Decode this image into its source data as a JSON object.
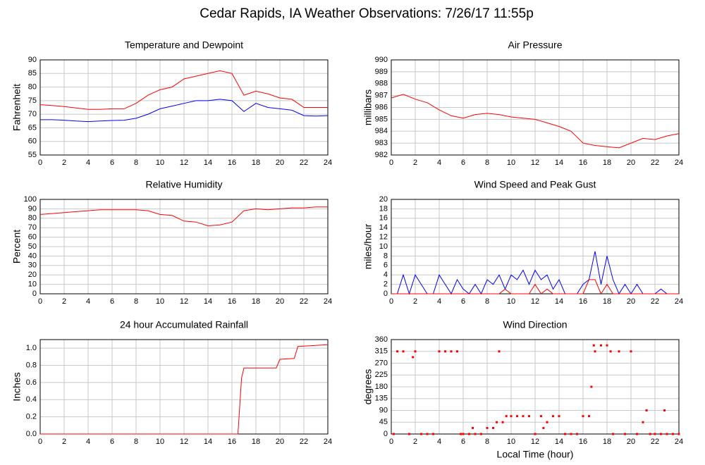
{
  "title": "Cedar Rapids, IA Weather Observations: 7/26/17 11:55p",
  "chart_data": [
    {
      "type": "line",
      "title": "Temperature and Dewpoint",
      "ylabel": "Fahrenheit",
      "x": [
        0,
        1,
        2,
        3,
        4,
        5,
        6,
        7,
        8,
        9,
        10,
        11,
        12,
        13,
        14,
        15,
        16,
        17,
        18,
        19,
        20,
        21,
        22,
        23,
        24
      ],
      "series": [
        {
          "name": "Temperature",
          "color": "#ff0000",
          "values": [
            73.5,
            73.2,
            72.8,
            72.3,
            71.8,
            71.8,
            72,
            72,
            74,
            77,
            79,
            80,
            83,
            84,
            85,
            86,
            85,
            77,
            78.5,
            77.5,
            76,
            75.5,
            72.5,
            72.5,
            72.5
          ]
        },
        {
          "name": "Dewpoint",
          "color": "#0000ff",
          "values": [
            68,
            68,
            67.8,
            67.5,
            67.3,
            67.5,
            67.7,
            67.8,
            68.5,
            70,
            72,
            73,
            74,
            75,
            75,
            75.5,
            75,
            71,
            74,
            72.5,
            72,
            71.5,
            69.5,
            69.3,
            69.5
          ]
        }
      ],
      "xlim": [
        0,
        24
      ],
      "xticks": [
        0,
        2,
        4,
        6,
        8,
        10,
        12,
        14,
        16,
        18,
        20,
        22,
        24
      ],
      "ylim": [
        55,
        90
      ],
      "yticks": [
        55,
        60,
        65,
        70,
        75,
        80,
        85,
        90
      ],
      "grid": true
    },
    {
      "type": "line",
      "title": "Air Pressure",
      "ylabel": "millibars",
      "x": [
        0,
        1,
        2,
        3,
        4,
        5,
        6,
        7,
        8,
        9,
        10,
        11,
        12,
        13,
        14,
        15,
        16,
        17,
        18,
        19,
        20,
        21,
        22,
        23,
        24
      ],
      "series": [
        {
          "name": "Pressure",
          "color": "#ff0000",
          "values": [
            986.8,
            987.1,
            986.7,
            986.4,
            985.8,
            985.3,
            985.1,
            985.4,
            985.5,
            985.4,
            985.2,
            985.1,
            985.0,
            984.7,
            984.4,
            984,
            983,
            982.8,
            982.7,
            982.6,
            983,
            983.4,
            983.3,
            983.6,
            983.8
          ]
        }
      ],
      "xlim": [
        0,
        24
      ],
      "xticks": [
        0,
        2,
        4,
        6,
        8,
        10,
        12,
        14,
        16,
        18,
        20,
        22,
        24
      ],
      "ylim": [
        982,
        990
      ],
      "yticks": [
        982,
        983,
        984,
        985,
        986,
        987,
        988,
        989,
        990
      ],
      "grid": true
    },
    {
      "type": "line",
      "title": "Relative Humidity",
      "ylabel": "Percent",
      "x": [
        0,
        1,
        2,
        3,
        4,
        5,
        6,
        7,
        8,
        9,
        10,
        11,
        12,
        13,
        14,
        15,
        16,
        17,
        18,
        19,
        20,
        21,
        22,
        23,
        24
      ],
      "series": [
        {
          "name": "Humidity",
          "color": "#ff0000",
          "values": [
            84,
            85,
            86,
            87,
            88,
            89,
            89,
            89,
            89,
            88,
            84,
            83,
            77,
            76,
            72,
            73,
            76,
            88,
            90,
            89,
            90,
            91,
            91,
            92,
            92
          ]
        }
      ],
      "xlim": [
        0,
        24
      ],
      "xticks": [
        0,
        2,
        4,
        6,
        8,
        10,
        12,
        14,
        16,
        18,
        20,
        22,
        24
      ],
      "ylim": [
        0,
        100
      ],
      "yticks": [
        0,
        10,
        20,
        30,
        40,
        50,
        60,
        70,
        80,
        90,
        100
      ],
      "grid": true
    },
    {
      "type": "line",
      "title": "Wind Speed and Peak Gust",
      "ylabel": "miles/hour",
      "x": [
        0,
        0.5,
        1,
        1.5,
        2,
        2.5,
        3,
        3.5,
        4,
        4.5,
        5,
        5.5,
        6,
        6.5,
        7,
        7.5,
        8,
        8.5,
        9,
        9.5,
        10,
        10.5,
        11,
        11.5,
        12,
        12.5,
        13,
        13.5,
        14,
        14.5,
        15,
        15.5,
        16,
        16.5,
        17,
        17.5,
        18,
        18.5,
        19,
        19.5,
        20,
        20.5,
        21,
        21.5,
        22,
        22.5,
        23,
        23.5,
        24
      ],
      "series": [
        {
          "name": "Wind Speed",
          "color": "#0000ff",
          "values": [
            0,
            0,
            4,
            0,
            4,
            2,
            0,
            0,
            4,
            2,
            0,
            3,
            1,
            0,
            2,
            0,
            3,
            2,
            4,
            1,
            4,
            3,
            5,
            2,
            5,
            3,
            4,
            1,
            3,
            0,
            0,
            0,
            2,
            3,
            9,
            2,
            8,
            3,
            0,
            2,
            0,
            2,
            0,
            0,
            0,
            1,
            0,
            0,
            0
          ]
        },
        {
          "name": "Peak Gust",
          "color": "#ff0000",
          "values": [
            0,
            0,
            0,
            0,
            0,
            0,
            0,
            0,
            0,
            0,
            0,
            0,
            0,
            0,
            0,
            0,
            0,
            0,
            0,
            1,
            0,
            0,
            0,
            0,
            2,
            0,
            1,
            0,
            0,
            0,
            0,
            0,
            0,
            3,
            3,
            0,
            2,
            0,
            0,
            0,
            0,
            0,
            0,
            0,
            0,
            0,
            0,
            0,
            0
          ]
        }
      ],
      "xlim": [
        0,
        24
      ],
      "xticks": [
        0,
        2,
        4,
        6,
        8,
        10,
        12,
        14,
        16,
        18,
        20,
        22,
        24
      ],
      "ylim": [
        0,
        20
      ],
      "yticks": [
        0,
        2,
        4,
        6,
        8,
        10,
        12,
        14,
        16,
        18,
        20
      ],
      "grid": true
    },
    {
      "type": "line",
      "title": "24 hour Accumulated Rainfall",
      "ylabel": "Inches",
      "x": [
        0,
        16.5,
        16.8,
        17,
        19.7,
        20,
        21.2,
        21.5,
        24
      ],
      "series": [
        {
          "name": "Rainfall",
          "color": "#ff0000",
          "values": [
            0,
            0,
            0.65,
            0.77,
            0.77,
            0.87,
            0.88,
            1.02,
            1.04
          ]
        }
      ],
      "xlim": [
        0,
        24
      ],
      "xticks": [
        0,
        2,
        4,
        6,
        8,
        10,
        12,
        14,
        16,
        18,
        20,
        22,
        24
      ],
      "ylim": [
        0,
        1.1
      ],
      "yticks": [
        {
          "value": 0,
          "label": "0.0"
        },
        0.2,
        0.4,
        0.6,
        0.8,
        {
          "value": 1,
          "label": "1.0"
        }
      ],
      "grid": true
    },
    {
      "type": "scatter",
      "title": "Wind Direction",
      "ylabel": "degrees",
      "xlabel": "Local Time (hour)",
      "x": [
        0.2,
        0.5,
        1,
        1.5,
        1.8,
        2,
        2.5,
        3,
        3.5,
        4,
        4.5,
        5,
        5.5,
        5.8,
        6,
        6.5,
        6.8,
        7,
        7.5,
        8,
        8.5,
        8.8,
        9,
        9.3,
        9.6,
        10,
        10.5,
        11,
        11.5,
        12,
        12.5,
        12.7,
        13,
        13.5,
        14,
        14.5,
        15,
        15.5,
        16,
        16.5,
        16.7,
        16.9,
        17,
        17.5,
        18,
        18.3,
        18.5,
        19,
        19.5,
        20,
        20.5,
        21,
        21.3,
        21.6,
        22,
        22.5,
        22.8,
        23,
        23.5,
        24
      ],
      "series": [
        {
          "name": "Direction",
          "color": "#ff0000",
          "values": [
            0,
            315,
            315,
            0,
            293,
            315,
            0,
            0,
            0,
            315,
            315,
            315,
            315,
            0,
            0,
            0,
            23,
            0,
            0,
            23,
            23,
            45,
            315,
            45,
            68,
            68,
            68,
            68,
            68,
            0,
            68,
            23,
            45,
            68,
            68,
            0,
            0,
            0,
            68,
            68,
            180,
            338,
            315,
            338,
            338,
            315,
            0,
            315,
            0,
            315,
            0,
            45,
            90,
            0,
            0,
            0,
            90,
            0,
            0,
            0
          ]
        }
      ],
      "xlim": [
        0,
        24
      ],
      "xticks": [
        0,
        2,
        4,
        6,
        8,
        10,
        12,
        14,
        16,
        18,
        20,
        22,
        24
      ],
      "ylim": [
        0,
        360
      ],
      "yticks": [
        0,
        45,
        90,
        135,
        180,
        225,
        270,
        315,
        360
      ],
      "grid": true
    }
  ]
}
